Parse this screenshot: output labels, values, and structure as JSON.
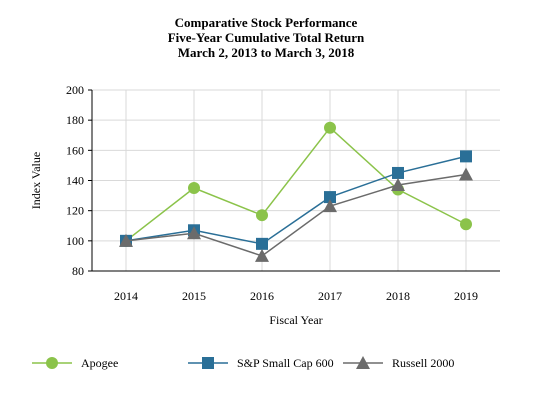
{
  "chart_data": {
    "type": "line",
    "title": [
      "Comparative Stock Performance",
      "Five-Year Cumulative Total Return",
      "March 2, 2013 to March 3, 2018"
    ],
    "xlabel": "Fiscal Year",
    "ylabel": "Index Value",
    "categories": [
      "2014",
      "2015",
      "2016",
      "2017",
      "2018",
      "2019"
    ],
    "ylim": [
      80,
      200
    ],
    "yticks": [
      80,
      100,
      120,
      140,
      160,
      180,
      200
    ],
    "grid": true,
    "legend_position": "bottom",
    "series": [
      {
        "name": "Apogee",
        "values": [
          100,
          135,
          117,
          175,
          134,
          111
        ],
        "color": "#8bc34a",
        "marker": "circle"
      },
      {
        "name": "S&P Small Cap 600",
        "values": [
          100,
          107,
          98,
          129,
          145,
          156
        ],
        "color": "#2a6f97",
        "marker": "square"
      },
      {
        "name": "Russell 2000",
        "values": [
          100,
          105,
          90,
          123,
          137,
          144
        ],
        "color": "#6b6b6b",
        "marker": "triangle"
      }
    ]
  }
}
